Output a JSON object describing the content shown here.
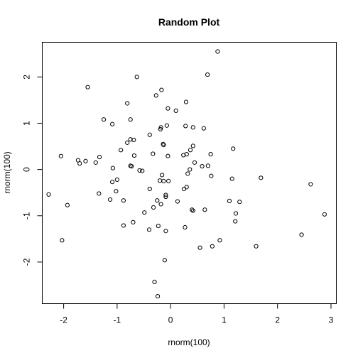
{
  "chart_data": {
    "type": "scatter",
    "title": "Random Plot",
    "xlabel": "rnorm(100)",
    "ylabel": "rnorm(100)",
    "xlim": [
      -2.4,
      3.1
    ],
    "ylim": [
      -2.9,
      2.75
    ],
    "xticks": [
      -2,
      -1,
      0,
      1,
      2,
      3
    ],
    "yticks": [
      -2,
      -1,
      0,
      1,
      2
    ],
    "xtick_labels": [
      "-2",
      "-1",
      "0",
      "1",
      "2",
      "3"
    ],
    "ytick_labels": [
      "-2",
      "-1",
      "0",
      "1",
      "2"
    ],
    "grid": false,
    "points": [
      {
        "x": 0.88,
        "y": 2.55
      },
      {
        "x": 0.69,
        "y": 2.05
      },
      {
        "x": -0.63,
        "y": 2.0
      },
      {
        "x": -1.55,
        "y": 1.78
      },
      {
        "x": -0.17,
        "y": 1.72
      },
      {
        "x": -0.27,
        "y": 1.6
      },
      {
        "x": 0.29,
        "y": 1.46
      },
      {
        "x": -0.81,
        "y": 1.43
      },
      {
        "x": -0.05,
        "y": 1.32
      },
      {
        "x": 0.1,
        "y": 1.27
      },
      {
        "x": -1.25,
        "y": 1.08
      },
      {
        "x": -0.75,
        "y": 1.08
      },
      {
        "x": -1.09,
        "y": 0.98
      },
      {
        "x": 0.28,
        "y": 0.94
      },
      {
        "x": 0.42,
        "y": 0.91
      },
      {
        "x": 0.62,
        "y": 0.89
      },
      {
        "x": -0.07,
        "y": 0.95
      },
      {
        "x": -0.18,
        "y": 0.91
      },
      {
        "x": -0.19,
        "y": 0.87
      },
      {
        "x": -0.39,
        "y": 0.75
      },
      {
        "x": -0.75,
        "y": 0.65
      },
      {
        "x": -0.69,
        "y": 0.64
      },
      {
        "x": -0.81,
        "y": 0.58
      },
      {
        "x": -0.14,
        "y": 0.55
      },
      {
        "x": -0.13,
        "y": 0.53
      },
      {
        "x": 0.42,
        "y": 0.51
      },
      {
        "x": 1.17,
        "y": 0.45
      },
      {
        "x": -0.93,
        "y": 0.42
      },
      {
        "x": 0.37,
        "y": 0.42
      },
      {
        "x": -0.33,
        "y": 0.34
      },
      {
        "x": 0.75,
        "y": 0.33
      },
      {
        "x": 0.24,
        "y": 0.31
      },
      {
        "x": 0.3,
        "y": 0.33
      },
      {
        "x": -0.05,
        "y": 0.29
      },
      {
        "x": -2.05,
        "y": 0.29
      },
      {
        "x": -1.33,
        "y": 0.27
      },
      {
        "x": -0.68,
        "y": 0.3
      },
      {
        "x": -1.73,
        "y": 0.2
      },
      {
        "x": -1.59,
        "y": 0.18
      },
      {
        "x": -1.4,
        "y": 0.15
      },
      {
        "x": -1.7,
        "y": 0.13
      },
      {
        "x": 0.45,
        "y": 0.15
      },
      {
        "x": 0.59,
        "y": 0.07
      },
      {
        "x": 0.7,
        "y": 0.08
      },
      {
        "x": -0.75,
        "y": 0.08
      },
      {
        "x": -0.73,
        "y": 0.07
      },
      {
        "x": -1.08,
        "y": 0.03
      },
      {
        "x": 0.36,
        "y": 0.0
      },
      {
        "x": -0.58,
        "y": -0.02
      },
      {
        "x": -0.53,
        "y": -0.03
      },
      {
        "x": 0.32,
        "y": -0.09
      },
      {
        "x": -0.16,
        "y": -0.12
      },
      {
        "x": 0.76,
        "y": -0.14
      },
      {
        "x": 1.15,
        "y": -0.2
      },
      {
        "x": 1.69,
        "y": -0.18
      },
      {
        "x": -1.0,
        "y": -0.22
      },
      {
        "x": -0.2,
        "y": -0.24
      },
      {
        "x": -0.13,
        "y": -0.25
      },
      {
        "x": -0.04,
        "y": -0.25
      },
      {
        "x": -1.09,
        "y": -0.27
      },
      {
        "x": 2.62,
        "y": -0.32
      },
      {
        "x": 0.3,
        "y": -0.38
      },
      {
        "x": 0.25,
        "y": -0.42
      },
      {
        "x": -0.39,
        "y": -0.42
      },
      {
        "x": -1.02,
        "y": -0.47
      },
      {
        "x": -1.34,
        "y": -0.52
      },
      {
        "x": -2.28,
        "y": -0.54
      },
      {
        "x": -0.09,
        "y": -0.55
      },
      {
        "x": -0.09,
        "y": -0.59
      },
      {
        "x": -1.13,
        "y": -0.65
      },
      {
        "x": -0.88,
        "y": -0.67
      },
      {
        "x": -0.25,
        "y": -0.67
      },
      {
        "x": 0.13,
        "y": -0.69
      },
      {
        "x": 1.1,
        "y": -0.68
      },
      {
        "x": 1.29,
        "y": -0.7
      },
      {
        "x": -0.18,
        "y": -0.75
      },
      {
        "x": -1.93,
        "y": -0.77
      },
      {
        "x": -0.32,
        "y": -0.82
      },
      {
        "x": 0.4,
        "y": -0.87
      },
      {
        "x": 0.42,
        "y": -0.89
      },
      {
        "x": 0.64,
        "y": -0.87
      },
      {
        "x": -0.49,
        "y": -0.93
      },
      {
        "x": 1.22,
        "y": -0.95
      },
      {
        "x": 2.88,
        "y": -0.97
      },
      {
        "x": 1.21,
        "y": -1.12
      },
      {
        "x": -0.7,
        "y": -1.14
      },
      {
        "x": -0.88,
        "y": -1.21
      },
      {
        "x": -0.23,
        "y": -1.22
      },
      {
        "x": 0.27,
        "y": -1.25
      },
      {
        "x": -0.4,
        "y": -1.3
      },
      {
        "x": -0.09,
        "y": -1.33
      },
      {
        "x": 2.45,
        "y": -1.41
      },
      {
        "x": -2.03,
        "y": -1.53
      },
      {
        "x": 0.92,
        "y": -1.53
      },
      {
        "x": 1.6,
        "y": -1.66
      },
      {
        "x": 0.55,
        "y": -1.69
      },
      {
        "x": 0.78,
        "y": -1.66
      },
      {
        "x": -0.11,
        "y": -1.96
      },
      {
        "x": -0.3,
        "y": -2.43
      },
      {
        "x": -0.24,
        "y": -2.74
      }
    ]
  }
}
